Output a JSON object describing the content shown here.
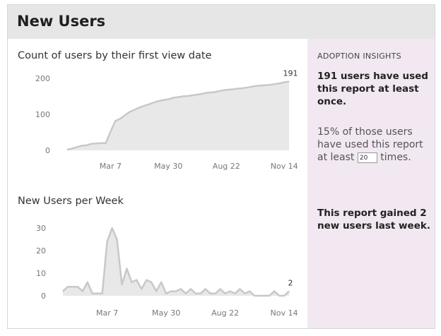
{
  "header": {
    "title": "New Users"
  },
  "charts": [
    {
      "title": "Count of users by their first view date",
      "y_ticks": [
        "200",
        "100",
        "0"
      ],
      "x_ticks": [
        "Mar 7",
        "May 30",
        "Aug 22",
        "Nov 14"
      ],
      "end_label": "191"
    },
    {
      "title": "New Users per Week",
      "y_ticks": [
        "30",
        "20",
        "10",
        "0"
      ],
      "x_ticks": [
        "Mar 7",
        "May 30",
        "Aug 22",
        "Nov 14"
      ],
      "end_label": "2"
    }
  ],
  "insights": {
    "heading": "ADOPTION INSIGHTS",
    "summary": "191 users have used this report at least once.",
    "pct_before": "15% of those users have used this report at least",
    "threshold_value": "20",
    "pct_after": "times.",
    "last_week": "This report gained 2 new users last week."
  },
  "colors": {
    "area_fill": "#e8e8e8",
    "line": "#c8c8c8",
    "insights_bg": "#f1e8f1",
    "header_bg": "#e6e6e6"
  },
  "chart_data": [
    {
      "type": "area",
      "title": "Count of users by their first view date",
      "x": [
        "Jan 3",
        "Jan 10",
        "Jan 17",
        "Jan 24",
        "Jan 31",
        "Feb 7",
        "Feb 14",
        "Feb 21",
        "Feb 28",
        "Mar 7",
        "Mar 14",
        "Mar 21",
        "Mar 28",
        "Apr 4",
        "Apr 11",
        "Apr 18",
        "Apr 25",
        "May 2",
        "May 9",
        "May 16",
        "May 23",
        "May 30",
        "Jun 6",
        "Jun 13",
        "Jun 20",
        "Jun 27",
        "Jul 4",
        "Jul 11",
        "Jul 18",
        "Jul 25",
        "Aug 1",
        "Aug 8",
        "Aug 15",
        "Aug 22",
        "Aug 29",
        "Sep 5",
        "Sep 12",
        "Sep 19",
        "Sep 26",
        "Oct 3",
        "Oct 10",
        "Oct 17",
        "Oct 24",
        "Oct 31",
        "Nov 7",
        "Nov 14",
        "Nov 21"
      ],
      "values": [
        2,
        5,
        9,
        13,
        14,
        18,
        19,
        20,
        20,
        52,
        82,
        88,
        98,
        107,
        113,
        119,
        124,
        128,
        133,
        137,
        140,
        142,
        146,
        148,
        150,
        151,
        153,
        155,
        157,
        160,
        161,
        163,
        166,
        168,
        169,
        171,
        172,
        174,
        176,
        179,
        180,
        181,
        182,
        184,
        186,
        189,
        191
      ],
      "ylim": [
        0,
        200
      ],
      "y_ticks": [
        0,
        100,
        200
      ],
      "x_ticks": [
        "Mar 7",
        "May 30",
        "Aug 22",
        "Nov 14"
      ],
      "end_label": "191",
      "grid": false
    },
    {
      "type": "area",
      "title": "New Users per Week",
      "x": [
        "Jan 3",
        "Jan 10",
        "Jan 17",
        "Jan 24",
        "Jan 31",
        "Feb 7",
        "Feb 14",
        "Feb 21",
        "Feb 28",
        "Mar 7",
        "Mar 14",
        "Mar 21",
        "Mar 28",
        "Apr 4",
        "Apr 11",
        "Apr 18",
        "Apr 25",
        "May 2",
        "May 9",
        "May 16",
        "May 23",
        "May 30",
        "Jun 6",
        "Jun 13",
        "Jun 20",
        "Jun 27",
        "Jul 4",
        "Jul 11",
        "Jul 18",
        "Jul 25",
        "Aug 1",
        "Aug 8",
        "Aug 15",
        "Aug 22",
        "Aug 29",
        "Sep 5",
        "Sep 12",
        "Sep 19",
        "Sep 26",
        "Oct 3",
        "Oct 10",
        "Oct 17",
        "Oct 24",
        "Oct 31",
        "Nov 7",
        "Nov 14",
        "Nov 21"
      ],
      "values": [
        2,
        4,
        4,
        4,
        2,
        6,
        1,
        1,
        1,
        24,
        30,
        25,
        5,
        12,
        6,
        7,
        3,
        7,
        6,
        2,
        6,
        1,
        2,
        2,
        3,
        1,
        3,
        1,
        1,
        3,
        1,
        1,
        3,
        1,
        2,
        1,
        3,
        1,
        2,
        0,
        0,
        0,
        0,
        2,
        0,
        0,
        2
      ],
      "ylim": [
        0,
        30
      ],
      "y_ticks": [
        0,
        10,
        20,
        30
      ],
      "x_ticks": [
        "Mar 7",
        "May 30",
        "Aug 22",
        "Nov 14"
      ],
      "end_label": "2",
      "grid": false
    }
  ]
}
